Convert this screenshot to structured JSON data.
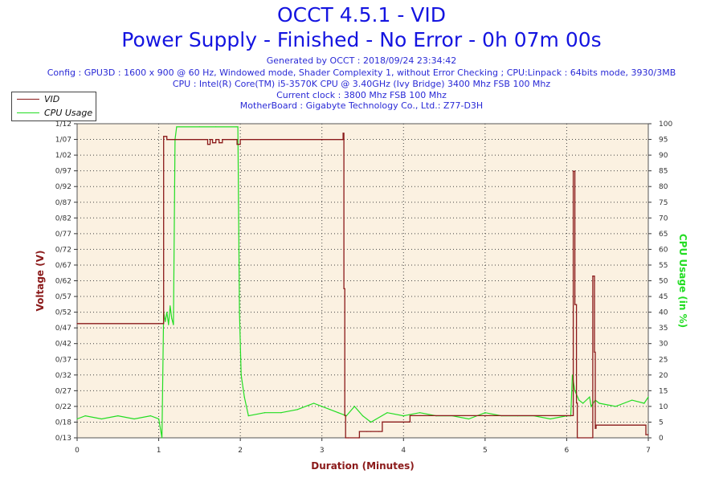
{
  "header": {
    "title": "OCCT 4.5.1 - VID",
    "subtitle": "Power Supply - Finished - No Error - 0h 07m 00s",
    "generated": "Generated by OCCT : 2018/09/24 23:34:42",
    "config": "Config : GPU3D : 1600 x 900 @ 60 Hz, Windowed mode, Shader Complexity 1, without Error Checking ; CPU:Linpack : 64bits mode, 3930/3MB",
    "cpu": "CPU : Intel(R) Core(TM) i5-3570K CPU @ 3.40GHz (Ivy Bridge) 3400 Mhz FSB 100 Mhz",
    "clock": "Current clock : 3800 Mhz FSB 100 Mhz",
    "motherboard": "MotherBoard : Gigabyte Technology Co., Ltd.: Z77-D3H"
  },
  "legend": {
    "items": [
      "VID",
      "CPU Usage"
    ]
  },
  "colors": {
    "vid": "#8b1a1a",
    "cpu": "#22dd22",
    "plot_bg": "#fbf1e1",
    "title": "#1414e0"
  },
  "chart_data": {
    "type": "line",
    "title": "OCCT 4.5.1 - VID",
    "xlabel": "Duration (Minutes)",
    "ylabel": "Voltage (V)",
    "y2label": "CPU Usage (in %)",
    "xlim": [
      0,
      7
    ],
    "ylim": [
      0.13,
      1.12
    ],
    "y2lim": [
      0,
      100
    ],
    "grid": true,
    "legend_position": "top-left",
    "x_ticks": [
      "0",
      "1",
      "2",
      "3",
      "4",
      "5",
      "6",
      "7"
    ],
    "y_ticks": [
      "0/13",
      "0/18",
      "0/22",
      "0/27",
      "0/32",
      "0/37",
      "0/42",
      "0/47",
      "0/52",
      "0/57",
      "0/62",
      "0/67",
      "0/72",
      "0/77",
      "0/82",
      "0/87",
      "0/92",
      "0/97",
      "1/02",
      "1/07",
      "1/12"
    ],
    "y2_ticks": [
      "0",
      "5",
      "10",
      "15",
      "20",
      "25",
      "30",
      "35",
      "40",
      "45",
      "50",
      "55",
      "60",
      "65",
      "70",
      "75",
      "80",
      "85",
      "90",
      "95",
      "100"
    ],
    "series": [
      {
        "name": "VID",
        "x": [
          0,
          1.04,
          1.06,
          1.08,
          1.1,
          1.2,
          1.58,
          1.6,
          1.63,
          1.66,
          1.7,
          1.74,
          1.78,
          1.92,
          1.96,
          2.0,
          3.0,
          3.25,
          3.26,
          3.27,
          3.28,
          3.29,
          3.32,
          3.45,
          3.46,
          3.55,
          3.6,
          3.7,
          3.74,
          4.06,
          4.08,
          4.1,
          6.0,
          6.06,
          6.08,
          6.1,
          6.12,
          6.13,
          6.15,
          6.3,
          6.32,
          6.34,
          6.35,
          6.36,
          6.95,
          6.97,
          7.0
        ],
        "y": [
          0.49,
          0.49,
          1.08,
          1.08,
          1.07,
          1.07,
          1.07,
          1.055,
          1.07,
          1.06,
          1.07,
          1.06,
          1.07,
          1.07,
          1.055,
          1.07,
          1.07,
          1.07,
          1.09,
          0.6,
          0.2,
          0.13,
          0.13,
          0.13,
          0.15,
          0.15,
          0.15,
          0.15,
          0.18,
          0.18,
          0.2,
          0.2,
          0.2,
          0.2,
          0.97,
          0.55,
          0.24,
          0.13,
          0.13,
          0.13,
          0.64,
          0.4,
          0.16,
          0.17,
          0.17,
          0.14,
          0.14
        ]
      },
      {
        "name": "CPU Usage",
        "x": [
          0,
          0.1,
          0.3,
          0.5,
          0.7,
          0.9,
          1.0,
          1.04,
          1.06,
          1.08,
          1.1,
          1.12,
          1.14,
          1.16,
          1.18,
          1.2,
          1.22,
          1.25,
          1.5,
          1.7,
          1.95,
          1.97,
          1.99,
          2.01,
          2.05,
          2.1,
          2.3,
          2.5,
          2.7,
          2.9,
          3.0,
          3.1,
          3.2,
          3.3,
          3.4,
          3.5,
          3.6,
          3.8,
          4.0,
          4.2,
          4.4,
          4.6,
          4.8,
          5.0,
          5.2,
          5.4,
          5.6,
          5.8,
          6.0,
          6.05,
          6.07,
          6.1,
          6.15,
          6.2,
          6.28,
          6.3,
          6.35,
          6.4,
          6.6,
          6.8,
          6.95,
          7.0
        ],
        "y": [
          6,
          7,
          6,
          7,
          6,
          7,
          6,
          0,
          40,
          37,
          40,
          36,
          42,
          38,
          36,
          95,
          99,
          99,
          99,
          99,
          99,
          99,
          40,
          20,
          13,
          7,
          8,
          8,
          9,
          11,
          10,
          9,
          8,
          7,
          10,
          7,
          5,
          8,
          7,
          8,
          7,
          7,
          6,
          8,
          7,
          7,
          7,
          6,
          7,
          7,
          20,
          15,
          12,
          11,
          13,
          10,
          12,
          11,
          10,
          12,
          11,
          13
        ]
      }
    ]
  }
}
